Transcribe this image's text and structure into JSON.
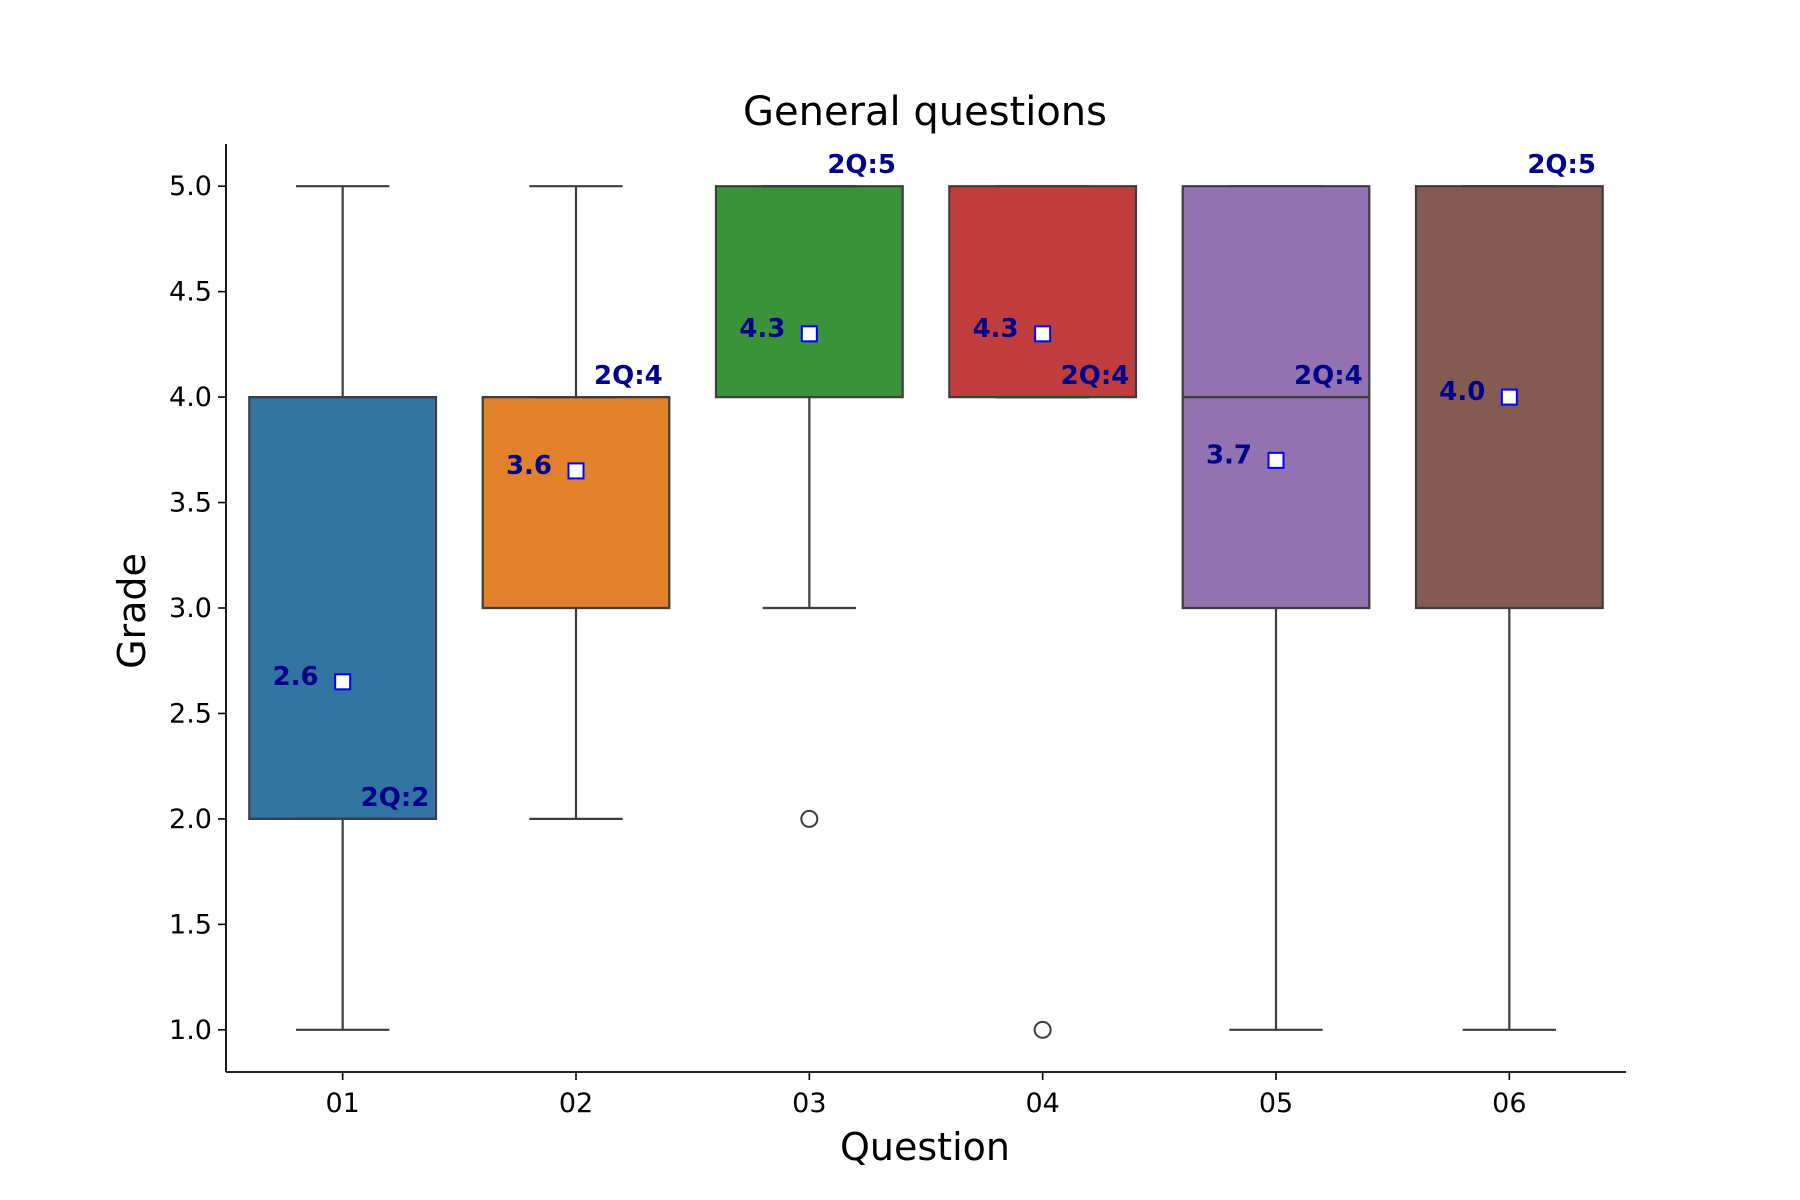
{
  "chart_data": {
    "type": "box",
    "title": "General questions",
    "xlabel": "Question",
    "ylabel": "Grade",
    "categories": [
      "01",
      "02",
      "03",
      "04",
      "05",
      "06"
    ],
    "ylim": [
      0.8,
      5.2
    ],
    "yticks": [
      "1.0",
      "1.5",
      "2.0",
      "2.5",
      "3.0",
      "3.5",
      "4.0",
      "4.5",
      "5.0"
    ],
    "notched": true,
    "grid": false,
    "boxes": [
      {
        "category": "01",
        "color": "#3274a1",
        "whisker_low": 1.0,
        "q1": 2.0,
        "median": 2.0,
        "q3": 4.0,
        "whisker_high": 5.0,
        "notch_low": 2.0,
        "notch_high": 2.0,
        "mean": 2.65,
        "mean_label": "2.6",
        "median_label": "2Q:2",
        "outliers": []
      },
      {
        "category": "02",
        "color": "#e1812c",
        "whisker_low": 2.0,
        "q1": 3.0,
        "median": 4.0,
        "q3": 4.0,
        "whisker_high": 5.0,
        "notch_low": 4.0,
        "notch_high": 4.0,
        "mean": 3.65,
        "mean_label": "3.6",
        "median_label": "2Q:4",
        "outliers": []
      },
      {
        "category": "03",
        "color": "#3a923a",
        "whisker_low": 3.0,
        "q1": 4.0,
        "median": 5.0,
        "q3": 5.0,
        "whisker_high": 5.0,
        "notch_low": 5.0,
        "notch_high": 5.0,
        "mean": 4.3,
        "mean_label": "4.3",
        "median_label": "2Q:5",
        "outliers": [
          2.0
        ]
      },
      {
        "category": "04",
        "color": "#c03d3e",
        "whisker_low": 4.0,
        "q1": 4.0,
        "median": 4.0,
        "q3": 5.0,
        "whisker_high": 5.0,
        "notch_low": 4.0,
        "notch_high": 4.0,
        "mean": 4.3,
        "mean_label": "4.3",
        "median_label": "2Q:4",
        "outliers": [
          1.0
        ]
      },
      {
        "category": "05",
        "color": "#9372b2",
        "whisker_low": 1.0,
        "q1": 3.0,
        "median": 4.0,
        "q3": 5.0,
        "whisker_high": 5.0,
        "notch_low": 4.0,
        "notch_high": 4.0,
        "mean": 3.7,
        "mean_label": "3.7",
        "median_label": "2Q:4",
        "outliers": []
      },
      {
        "category": "06",
        "color": "#845b53",
        "whisker_low": 1.0,
        "q1": 3.0,
        "median": 5.0,
        "q3": 5.0,
        "whisker_high": 5.0,
        "notch_low": 5.0,
        "notch_high": 5.0,
        "mean": 4.0,
        "mean_label": "4.0",
        "median_label": "2Q:5",
        "outliers": []
      }
    ],
    "label_color": "#00008b",
    "mean_marker_fill": "#ffffff",
    "mean_marker_edge": "#0000ff",
    "line_color": "#3d3d3d"
  }
}
